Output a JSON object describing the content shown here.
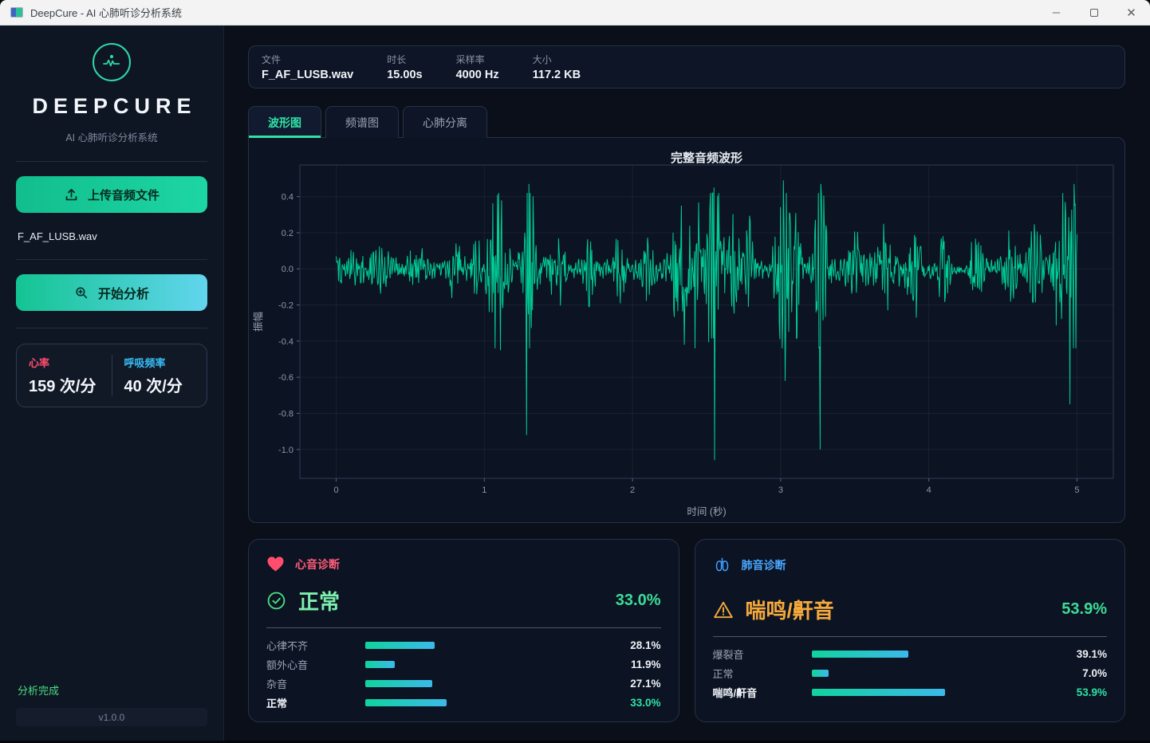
{
  "window": {
    "title": "DeepCure - AI 心肺听诊分析系统",
    "minimize": "─",
    "maximize": "",
    "close": "✕"
  },
  "sidebar": {
    "brand": "DEEPCURE",
    "subtitle": "AI 心肺听诊分析系统",
    "upload_button": "上传音频文件",
    "filename": "F_AF_LUSB.wav",
    "analyze_button": "开始分析",
    "stats": {
      "heart_rate_label": "心率",
      "heart_rate_value": "159 次/分",
      "resp_rate_label": "呼吸频率",
      "resp_rate_value": "40 次/分"
    },
    "status": "分析完成",
    "version": "v1.0.0"
  },
  "fileinfo": {
    "items": [
      {
        "label": "文件",
        "value": "F_AF_LUSB.wav"
      },
      {
        "label": "时长",
        "value": "15.00s"
      },
      {
        "label": "采样率",
        "value": "4000 Hz"
      },
      {
        "label": "大小",
        "value": "117.2 KB"
      }
    ]
  },
  "tabs": [
    {
      "label": "波形图",
      "active": true
    },
    {
      "label": "频谱图",
      "active": false
    },
    {
      "label": "心肺分离",
      "active": false
    }
  ],
  "chart_data": {
    "type": "line",
    "title": "完整音频波形",
    "xlabel": "时间 (秒)",
    "ylabel": "振幅",
    "xlim": [
      -0.245,
      5.245
    ],
    "ylim": [
      -1.16,
      0.575
    ],
    "xticks": [
      0,
      1,
      2,
      3,
      4,
      5
    ],
    "yticks": [
      0.4,
      0.2,
      0.0,
      -0.2,
      -0.4,
      -0.6,
      -0.8,
      -1.0
    ],
    "grid": true,
    "line_color": "#00cc96",
    "signal": {
      "duration": 5.0,
      "n_points": 1250,
      "noise_floor": 0.045,
      "bursts": [
        [
          0.3,
          0.05,
          0.05
        ],
        [
          0.55,
          0.06,
          0.07
        ],
        [
          0.8,
          0.05,
          0.08
        ],
        [
          0.95,
          0.04,
          0.09
        ],
        [
          1.09,
          0.05,
          0.38
        ],
        [
          1.3,
          0.035,
          0.4
        ],
        [
          1.5,
          0.05,
          0.09
        ],
        [
          1.72,
          0.04,
          0.13
        ],
        [
          1.92,
          0.04,
          0.15
        ],
        [
          2.1,
          0.04,
          0.1
        ],
        [
          2.33,
          0.05,
          0.3
        ],
        [
          2.45,
          0.03,
          0.18
        ],
        [
          2.55,
          0.045,
          0.4
        ],
        [
          2.68,
          0.04,
          0.2
        ],
        [
          2.78,
          0.04,
          0.16
        ],
        [
          3.02,
          0.05,
          0.42
        ],
        [
          3.1,
          0.04,
          0.26
        ],
        [
          3.27,
          0.04,
          0.4
        ],
        [
          3.5,
          0.04,
          0.1
        ],
        [
          3.7,
          0.04,
          0.12
        ],
        [
          3.9,
          0.045,
          0.15
        ],
        [
          4.1,
          0.04,
          0.11
        ],
        [
          4.32,
          0.045,
          0.14
        ],
        [
          4.55,
          0.04,
          0.12
        ],
        [
          4.72,
          0.04,
          0.12
        ],
        [
          4.9,
          0.05,
          0.28
        ],
        [
          4.98,
          0.035,
          0.4
        ]
      ],
      "spikes": [
        [
          1.09,
          0.41
        ],
        [
          1.11,
          -0.45
        ],
        [
          1.3,
          0.47
        ],
        [
          1.285,
          -0.92
        ],
        [
          2.33,
          0.35
        ],
        [
          2.35,
          -0.42
        ],
        [
          2.42,
          -0.44
        ],
        [
          2.55,
          0.45
        ],
        [
          2.553,
          -1.06
        ],
        [
          3.02,
          0.49
        ],
        [
          3.03,
          -0.62
        ],
        [
          3.27,
          0.47
        ],
        [
          3.268,
          -1.0
        ],
        [
          4.92,
          0.37
        ],
        [
          4.95,
          -0.75
        ],
        [
          4.98,
          0.47
        ]
      ]
    }
  },
  "heart": {
    "header": "心音诊断",
    "result": "正常",
    "confidence": "33.0%",
    "rows": [
      {
        "label": "心律不齐",
        "pct": 28.1,
        "value": "28.1%"
      },
      {
        "label": "额外心音",
        "pct": 11.9,
        "value": "11.9%"
      },
      {
        "label": "杂音",
        "pct": 27.1,
        "value": "27.1%"
      },
      {
        "label": "正常",
        "pct": 33.0,
        "value": "33.0%"
      }
    ]
  },
  "lung": {
    "header": "肺音诊断",
    "result": "喘鸣/鼾音",
    "confidence": "53.9%",
    "rows": [
      {
        "label": "爆裂音",
        "pct": 39.1,
        "value": "39.1%"
      },
      {
        "label": "正常",
        "pct": 7.0,
        "value": "7.0%"
      },
      {
        "label": "喘鸣/鼾音",
        "pct": 53.9,
        "value": "53.9%"
      }
    ]
  },
  "colors": {
    "accent_green": "#1fd3a1",
    "accent_blue": "#38bdf8",
    "pink": "#ff4d6d",
    "orange": "#f5a93c",
    "result_green": "#3ddc97",
    "waveform": "#00cc96",
    "bar_start": "#10d39e",
    "bar_end": "#3cb9ea"
  }
}
